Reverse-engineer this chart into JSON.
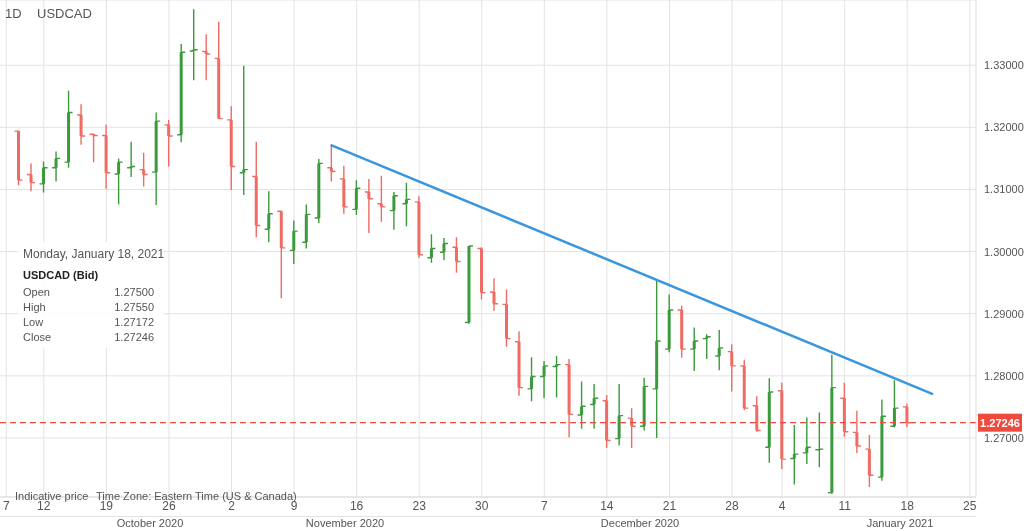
{
  "chart_data": {
    "type": "candlestick",
    "title": "USDCAD",
    "subtitle": "1D",
    "categories": [
      "7",
      null,
      null,
      "12",
      null,
      null,
      null,
      null,
      "19",
      null,
      null,
      null,
      null,
      "26",
      null,
      null,
      null,
      null,
      "2",
      null,
      null,
      null,
      null,
      "9",
      null,
      null,
      null,
      null,
      "16",
      null,
      null,
      null,
      null,
      "23",
      null,
      null,
      null,
      null,
      "30",
      null,
      null,
      null,
      null,
      "7",
      null,
      null,
      null,
      null,
      "14",
      null,
      null,
      null,
      null,
      "21",
      null,
      null,
      null,
      null,
      "28",
      null,
      null,
      null,
      "4",
      null,
      null,
      null,
      null,
      "11",
      null,
      null,
      null,
      null,
      "18",
      null,
      null,
      null,
      null,
      "25"
    ],
    "ohlc": [
      null,
      [
        1.3194,
        1.3195,
        1.3107,
        1.3115
      ],
      [
        1.3124,
        1.3142,
        1.3097,
        1.3111
      ],
      [
        1.3109,
        1.3145,
        1.3095,
        1.3135
      ],
      [
        1.3135,
        1.3161,
        1.3113,
        1.315
      ],
      [
        1.3144,
        1.3259,
        1.3135,
        1.3224
      ],
      [
        1.322,
        1.3237,
        1.3172,
        1.3186
      ],
      [
        1.3189,
        1.319,
        1.3144,
        1.3187
      ],
      [
        1.3187,
        1.3204,
        1.3101,
        1.3127
      ],
      [
        1.3125,
        1.315,
        1.3076,
        1.3144
      ],
      [
        1.3135,
        1.3177,
        1.312,
        1.3137
      ],
      [
        1.3132,
        1.3159,
        1.3105,
        1.3124
      ],
      [
        1.3128,
        1.3224,
        1.3075,
        1.321
      ],
      [
        1.3204,
        1.3212,
        1.3137,
        1.3186
      ],
      [
        1.3188,
        1.3334,
        1.3176,
        1.3321
      ],
      [
        1.3323,
        1.339,
        1.3276,
        1.3325
      ],
      [
        1.3322,
        1.335,
        1.3276,
        1.3318
      ],
      [
        1.3311,
        1.337,
        1.3214,
        1.3214
      ],
      [
        1.3212,
        1.3234,
        1.3099,
        1.3137
      ],
      [
        1.3127,
        1.3299,
        1.3091,
        1.3132
      ],
      [
        1.3121,
        1.3177,
        1.3023,
        1.3042
      ],
      [
        1.3036,
        1.3097,
        1.3015,
        1.3061
      ],
      [
        1.3065,
        1.3066,
        1.2925,
        1.3006
      ],
      [
        1.3002,
        1.305,
        1.298,
        1.3033
      ],
      [
        1.3015,
        1.3076,
        1.3005,
        1.306
      ],
      [
        1.3054,
        1.3149,
        1.3046,
        1.3142
      ],
      [
        1.3135,
        1.3172,
        1.3113,
        1.3129
      ],
      [
        1.3117,
        1.3138,
        1.3061,
        1.3072
      ],
      [
        1.3068,
        1.3115,
        1.3059,
        1.3102
      ],
      [
        1.3096,
        1.3117,
        1.303,
        1.3085
      ],
      [
        1.3077,
        1.3122,
        1.3048,
        1.3072
      ],
      [
        1.3066,
        1.3096,
        1.3035,
        1.309
      ],
      [
        1.3077,
        1.3111,
        1.3041,
        1.3084
      ],
      [
        1.308,
        1.3089,
        1.299,
        1.2995
      ],
      [
        1.299,
        1.3028,
        1.2982,
        1.3005
      ],
      [
        1.2999,
        1.3022,
        1.2986,
        1.3013
      ],
      [
        1.3007,
        1.3023,
        1.2966,
        1.2984
      ],
      [
        1.2886,
        1.3009,
        1.2884,
        1.3009
      ],
      [
        1.3005,
        1.3007,
        1.2923,
        1.2934
      ],
      [
        1.2935,
        1.2957,
        1.2905,
        1.2916
      ],
      [
        1.2915,
        1.2939,
        1.2847,
        1.286
      ],
      [
        1.2855,
        1.2872,
        1.2768,
        1.2781
      ],
      [
        1.2779,
        1.283,
        1.2759,
        1.2799
      ],
      [
        1.2799,
        1.2824,
        1.2764,
        1.2816
      ],
      [
        1.2815,
        1.2832,
        1.2765,
        1.2818
      ],
      [
        1.2818,
        1.2827,
        1.2701,
        1.2738
      ],
      [
        1.2737,
        1.2791,
        1.2715,
        1.2751
      ],
      [
        1.2754,
        1.2787,
        1.2715,
        1.2764
      ],
      [
        1.276,
        1.2769,
        1.2684,
        1.2696
      ],
      [
        1.2699,
        1.2787,
        1.2688,
        1.2736
      ],
      [
        1.2732,
        1.2748,
        1.2684,
        1.2719
      ],
      [
        1.2719,
        1.2797,
        1.2712,
        1.2783
      ],
      [
        1.2779,
        1.2956,
        1.27,
        1.2856
      ],
      [
        1.2843,
        1.2931,
        1.2838,
        1.2906
      ],
      [
        1.2906,
        1.2913,
        1.2829,
        1.2843
      ],
      [
        1.2843,
        1.2878,
        1.2808,
        1.2856
      ],
      [
        1.286,
        1.2867,
        1.2827,
        1.2863
      ],
      [
        1.2832,
        1.2874,
        1.2809,
        1.2845
      ],
      [
        1.2839,
        1.2851,
        1.2775,
        1.2816
      ],
      [
        1.2816,
        1.2826,
        1.2745,
        1.2748
      ],
      [
        1.2752,
        1.2767,
        1.271,
        1.2712
      ],
      [
        1.2685,
        1.2796,
        1.266,
        1.2774
      ],
      [
        1.2776,
        1.2789,
        1.265,
        1.2666
      ],
      [
        1.2667,
        1.2721,
        1.2625,
        1.2674
      ],
      [
        1.2676,
        1.2733,
        1.2658,
        1.2685
      ],
      [
        1.2681,
        1.2741,
        1.2653,
        1.2682
      ],
      [
        1.2612,
        1.2834,
        1.261,
        1.2781
      ],
      [
        1.2764,
        1.2789,
        1.2702,
        1.271
      ],
      [
        1.2709,
        1.2744,
        1.2676,
        1.2687
      ],
      [
        1.2682,
        1.2705,
        1.2621,
        1.264
      ],
      [
        1.2637,
        1.2762,
        1.2631,
        1.2735
      ],
      [
        1.2719,
        1.2793,
        1.2717,
        1.2748
      ],
      [
        1.275,
        1.2755,
        1.27172,
        1.27246
      ],
      null,
      null,
      null,
      null,
      null
    ],
    "colors": [
      null,
      "#ef6b64",
      "#ef6b64",
      "#3c9a3c",
      "#3c9a3c",
      "#3c9a3c",
      "#ef6b64",
      "#ef6b64",
      "#ef6b64",
      "#3c9a3c",
      "#3c9a3c",
      "#ef6b64",
      "#3c9a3c",
      "#ef6b64",
      "#3c9a3c",
      "#3c9a3c",
      "#ef6b64",
      "#ef6b64",
      "#ef6b64",
      "#3c9a3c",
      "#ef6b64",
      "#3c9a3c",
      "#ef6b64",
      "#3c9a3c",
      "#3c9a3c",
      "#3c9a3c",
      "#ef6b64",
      "#ef6b64",
      "#3c9a3c",
      "#ef6b64",
      "#ef6b64",
      "#3c9a3c",
      "#3c9a3c",
      "#ef6b64",
      "#3c9a3c",
      "#3c9a3c",
      "#ef6b64",
      "#3c9a3c",
      "#ef6b64",
      "#ef6b64",
      "#ef6b64",
      "#ef6b64",
      "#3c9a3c",
      "#3c9a3c",
      "#3c9a3c",
      "#ef6b64",
      "#3c9a3c",
      "#3c9a3c",
      "#ef6b64",
      "#3c9a3c",
      "#ef6b64",
      "#3c9a3c",
      "#3c9a3c",
      "#3c9a3c",
      "#ef6b64",
      "#3c9a3c",
      "#3c9a3c",
      "#3c9a3c",
      "#ef6b64",
      "#ef6b64",
      "#ef6b64",
      "#3c9a3c",
      "#ef6b64",
      "#3c9a3c",
      "#3c9a3c",
      "#3c9a3c",
      "#3c9a3c",
      "#ef6b64",
      "#ef6b64",
      "#ef6b64",
      "#3c9a3c",
      "#3c9a3c",
      "#ef6b64",
      null,
      null,
      null,
      null,
      null
    ],
    "series": [
      {
        "type": "line",
        "color": "#3a96dd",
        "values": [
          null,
          null,
          null,
          null,
          null,
          null,
          null,
          null,
          null,
          null,
          null,
          null,
          null,
          null,
          null,
          null,
          null,
          null,
          null,
          null,
          null,
          null,
          null,
          null,
          null,
          null,
          1.3171,
          null,
          null,
          null,
          null,
          null,
          null,
          null,
          null,
          null,
          null,
          null,
          null,
          null,
          null,
          null,
          null,
          null,
          null,
          null,
          null,
          null,
          null,
          null,
          null,
          null,
          null,
          null,
          null,
          null,
          null,
          null,
          null,
          null,
          null,
          null,
          null,
          null,
          null,
          null,
          null,
          null,
          null,
          null,
          null,
          null,
          null,
          null,
          1.2771,
          null,
          null,
          null
        ]
      }
    ],
    "ylim": [
      1.2605,
      1.3405
    ],
    "yticks": [
      {
        "value": 1.27,
        "label": "1.27000"
      },
      {
        "value": 1.28,
        "label": "1.28000"
      },
      {
        "value": 1.29,
        "label": "1.29000"
      },
      {
        "value": 1.3,
        "label": "1.30000"
      },
      {
        "value": 1.31,
        "label": "1.31000"
      },
      {
        "value": 1.32,
        "label": "1.32000"
      },
      {
        "value": 1.33,
        "label": "1.33000"
      }
    ],
    "ref_lines": [
      {
        "axis": "y",
        "value": 1.27246,
        "label": "1.27246",
        "color": "#ef4a3c",
        "line_style": "dashed"
      }
    ],
    "grid": true,
    "annotations": [
      "October 2020",
      "November 2020",
      "December 2020",
      "January 2021",
      "Monday, January 18, 2021",
      "USDCAD (Bid)",
      "Open",
      "1.27500",
      "High",
      "1.27550",
      "Low",
      "1.27172",
      "Close",
      "1.27246",
      "Indicative price",
      "Time Zone: Eastern Time (US & Canada)"
    ]
  }
}
